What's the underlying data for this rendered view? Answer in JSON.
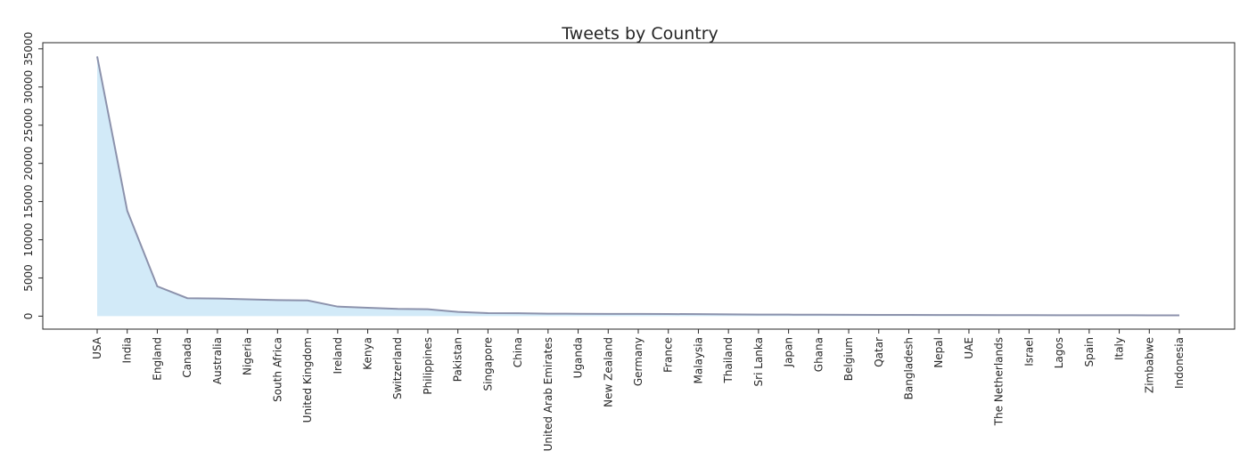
{
  "chart_data": {
    "type": "area",
    "title": "Tweets by Country",
    "xlabel": "",
    "ylabel": "",
    "categories": [
      "USA",
      "India",
      "England",
      "Canada",
      "Australia",
      "Nigeria",
      "South Africa",
      "United Kingdom",
      "Ireland",
      "Kenya",
      "Switzerland",
      "Philippines",
      "Pakistan",
      "Singapore",
      "China",
      "United Arab Emirates",
      "Uganda",
      "New Zealand",
      "Germany",
      "France",
      "Malaysia",
      "Thailand",
      "Sri Lanka",
      "Japan",
      "Ghana",
      "Belgium",
      "Qatar",
      "Bangladesh",
      "Nepal",
      "UAE",
      "The Netherlands",
      "Israel",
      "Lagos",
      "Spain",
      "Italy",
      "Zimbabwe",
      "Indonesia"
    ],
    "series": [
      {
        "values": [
          34000,
          13800,
          3900,
          2350,
          2300,
          2200,
          2100,
          2050,
          1250,
          1100,
          950,
          900,
          550,
          400,
          380,
          330,
          310,
          300,
          290,
          280,
          260,
          230,
          210,
          200,
          190,
          180,
          170,
          160,
          155,
          150,
          140,
          130,
          125,
          120,
          115,
          110,
          105
        ]
      }
    ],
    "ylim": [
      -1700,
      35800
    ],
    "yticks": [
      0,
      5000,
      10000,
      15000,
      20000,
      25000,
      30000,
      35000
    ],
    "yticklabels": [
      "0",
      "5000",
      "10000",
      "15000",
      "20000",
      "25000",
      "30000",
      "35000"
    ],
    "fill_color": "#d2eaf8",
    "line_color": "#8c92ac",
    "grid": false,
    "legend": "none"
  }
}
